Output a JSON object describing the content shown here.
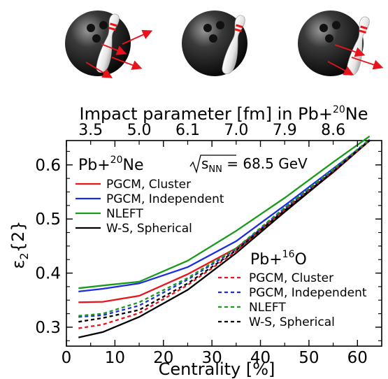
{
  "chart_data": {
    "type": "line",
    "xlabel": "Centrality [%]",
    "ylabel": "ε2{2}",
    "xlim": [
      0,
      65
    ],
    "ylim": [
      0.265,
      0.645
    ],
    "x_ticks": [
      "0",
      "10",
      "20",
      "30",
      "40",
      "50",
      "60"
    ],
    "y_ticks": [
      "0.3",
      "0.4",
      "0.5",
      "0.6"
    ],
    "top_axis": {
      "title": "Impact parameter [fm] in Pb+20Ne",
      "tick_labels": [
        "3.5",
        "5.0",
        "6.1",
        "7.0",
        "7.9",
        "8.6"
      ],
      "tick_positions": [
        5,
        15,
        25,
        35,
        45,
        55
      ]
    },
    "annotation_energy": "√sNN = 68.5 GeV",
    "legend_ne": {
      "title": "Pb+20Ne",
      "entries": [
        "PGCM, Cluster",
        "PGCM, Independent",
        "NLEFT",
        "W-S, Spherical"
      ]
    },
    "legend_o": {
      "title": "Pb+16O",
      "entries": [
        "PGCM, Cluster",
        "PGCM, Independent",
        "NLEFT",
        "W-S, Spherical"
      ]
    },
    "x": [
      2.5,
      7.5,
      15,
      25,
      35,
      45,
      55,
      62.5
    ],
    "series": [
      {
        "name": "PGCM, Cluster",
        "system": "Pb+20Ne",
        "color": "#e8141b",
        "dash": "solid",
        "values": [
          0.346,
          0.347,
          0.358,
          0.398,
          0.446,
          0.516,
          0.586,
          0.645
        ]
      },
      {
        "name": "PGCM, Independent",
        "system": "Pb+20Ne",
        "color": "#1a2de0",
        "dash": "solid",
        "values": [
          0.366,
          0.371,
          0.381,
          0.411,
          0.459,
          0.525,
          0.593,
          0.645
        ]
      },
      {
        "name": "NLEFT",
        "system": "Pb+20Ne",
        "color": "#1a9a1a",
        "dash": "solid",
        "values": [
          0.372,
          0.377,
          0.384,
          0.423,
          0.478,
          0.539,
          0.605,
          0.653
        ]
      },
      {
        "name": "W-S, Spherical",
        "system": "Pb+20Ne",
        "color": "#000000",
        "dash": "solid",
        "values": [
          0.281,
          0.291,
          0.319,
          0.369,
          0.437,
          0.513,
          0.587,
          0.645
        ]
      },
      {
        "name": "PGCM, Cluster",
        "system": "Pb+16O",
        "color": "#e8141b",
        "dash": "dashed",
        "values": [
          0.298,
          0.305,
          0.326,
          0.378,
          0.44,
          0.518,
          0.589,
          0.645
        ]
      },
      {
        "name": "PGCM, Independent",
        "system": "Pb+16O",
        "color": "#1a2de0",
        "dash": "dashed",
        "values": [
          0.319,
          0.322,
          0.34,
          0.388,
          0.444,
          0.52,
          0.591,
          0.647
        ]
      },
      {
        "name": "NLEFT",
        "system": "Pb+16O",
        "color": "#1a9a1a",
        "dash": "dashed",
        "values": [
          0.321,
          0.325,
          0.346,
          0.391,
          0.446,
          0.521,
          0.592,
          0.647
        ]
      },
      {
        "name": "W-S, Spherical",
        "system": "Pb+16O",
        "color": "#000000",
        "dash": "dashed",
        "values": [
          0.31,
          0.317,
          0.332,
          0.381,
          0.442,
          0.516,
          0.588,
          0.645
        ]
      }
    ],
    "grid": false,
    "illustration": {
      "description_icons": [
        "bowling-ball-icon",
        "bowling-pin-icon",
        "impact-arrows-icon"
      ],
      "panels": 3,
      "arrow_color": "#e8141b"
    }
  }
}
